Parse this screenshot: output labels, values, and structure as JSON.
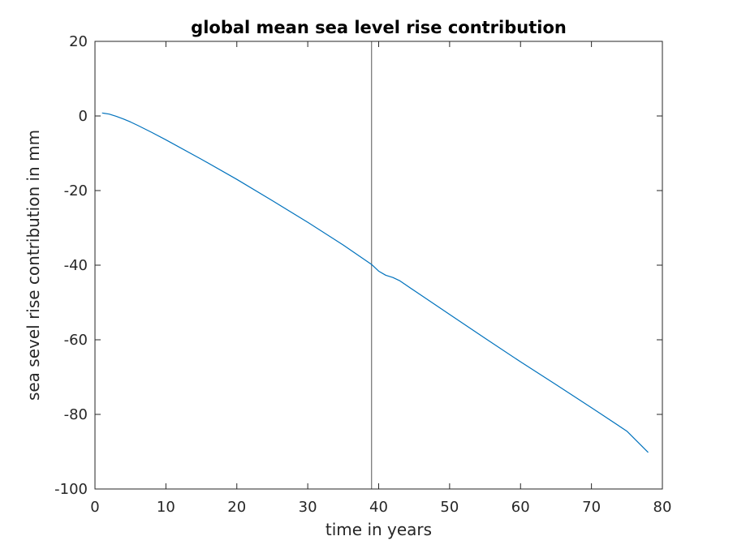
{
  "chart_data": {
    "type": "line",
    "title": "global mean sea level rise contribution",
    "xlabel": "time in years",
    "ylabel": "sea sevel rise contribution in mm",
    "xlim": [
      0,
      80
    ],
    "ylim": [
      -100,
      20
    ],
    "xticks": [
      0,
      10,
      20,
      30,
      40,
      50,
      60,
      70,
      80
    ],
    "yticks": [
      20,
      0,
      -20,
      -40,
      -60,
      -80,
      -100
    ],
    "xtick_labels": [
      "0",
      "10",
      "20",
      "30",
      "40",
      "50",
      "60",
      "70",
      "80"
    ],
    "ytick_labels": [
      "20",
      "0",
      "-20",
      "-40",
      "-60",
      "-80",
      "-100"
    ],
    "grid": false,
    "box": true,
    "series_color": "#0072bd",
    "vertical_line": {
      "x": 39,
      "color": "#555555"
    },
    "series": [
      {
        "x": [
          1,
          2,
          3,
          4,
          5,
          6,
          8,
          10,
          15,
          20,
          25,
          30,
          35,
          38,
          39,
          40,
          41,
          42,
          43,
          45,
          50,
          55,
          60,
          65,
          70,
          75,
          78
        ],
        "values": [
          0.8,
          0.5,
          -0.1,
          -0.8,
          -1.6,
          -2.5,
          -4.4,
          -6.4,
          -11.6,
          -17.0,
          -22.7,
          -28.5,
          -34.6,
          -38.5,
          -39.8,
          -41.6,
          -42.7,
          -43.3,
          -44.2,
          -46.8,
          -53.2,
          -59.6,
          -65.9,
          -72.0,
          -78.2,
          -84.5,
          -90.2
        ]
      }
    ]
  }
}
